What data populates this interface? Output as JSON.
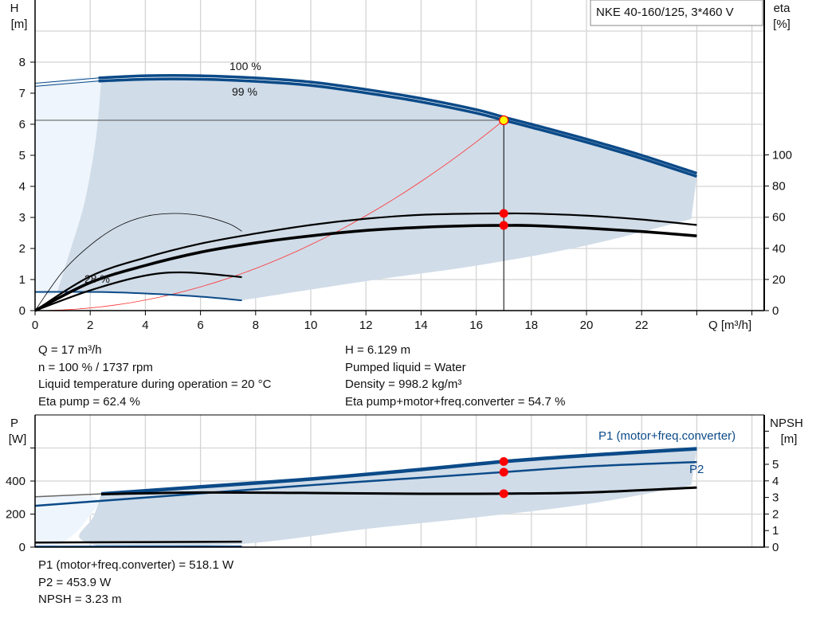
{
  "chart_data": [
    {
      "type": "line",
      "title": "NKE 40-160/125, 3*460 V",
      "xlabel": "Q [m³/h]",
      "ylabel": "H\n[m]",
      "y2label": "eta\n[%]",
      "xlim": [
        0,
        26
      ],
      "ylim": [
        0,
        10
      ],
      "y2lim": [
        0,
        200
      ],
      "grid": true,
      "x_ticks": [
        0,
        2,
        4,
        6,
        8,
        10,
        12,
        14,
        16,
        18,
        20,
        22
      ],
      "y_ticks": [
        0,
        1,
        2,
        3,
        4,
        5,
        6,
        7,
        8
      ],
      "y2_ticks": [
        0,
        20,
        40,
        60,
        80,
        100
      ],
      "annotations": [
        "100 %",
        "99 %",
        "28 %"
      ],
      "series": [
        {
          "name": "100 %",
          "kind": "H",
          "color": "#0b4a88",
          "points": [
            [
              2.3,
              7.49
            ],
            [
              4,
              7.56
            ],
            [
              6,
              7.56
            ],
            [
              8,
              7.49
            ],
            [
              10,
              7.36
            ],
            [
              12,
              7.12
            ],
            [
              14,
              6.83
            ],
            [
              16,
              6.47
            ],
            [
              17,
              6.23
            ],
            [
              18,
              6.0
            ],
            [
              20,
              5.52
            ],
            [
              22,
              5.0
            ],
            [
              24,
              4.42
            ]
          ]
        },
        {
          "name": "99 %",
          "kind": "H",
          "color": "#0b4a88",
          "points": [
            [
              2.3,
              7.39
            ],
            [
              4,
              7.45
            ],
            [
              6,
              7.45
            ],
            [
              8,
              7.38
            ],
            [
              10,
              7.25
            ],
            [
              12,
              7.01
            ],
            [
              14,
              6.72
            ],
            [
              16,
              6.36
            ],
            [
              17,
              6.13
            ],
            [
              18,
              5.9
            ],
            [
              20,
              5.42
            ],
            [
              22,
              4.9
            ],
            [
              24,
              4.32
            ]
          ]
        },
        {
          "kind": "H",
          "color": "#0b4a88",
          "points": [
            [
              0,
              0.6
            ],
            [
              2.3,
              0.6
            ],
            [
              4,
              0.55
            ],
            [
              6,
              0.45
            ],
            [
              7.5,
              0.33
            ]
          ]
        },
        {
          "kind": "eta",
          "color": "#000000",
          "points": [
            [
              0,
              0
            ],
            [
              2,
              22
            ],
            [
              4,
              34
            ],
            [
              6,
              43
            ],
            [
              8,
              49.5
            ],
            [
              10,
              55
            ],
            [
              12,
              59
            ],
            [
              14,
              61.5
            ],
            [
              16,
              62.3
            ],
            [
              17,
              62.4
            ],
            [
              18,
              62.3
            ],
            [
              20,
              61
            ],
            [
              22,
              58.5
            ],
            [
              24,
              55
            ]
          ]
        },
        {
          "kind": "eta",
          "color": "#000000",
          "points": [
            [
              0,
              0
            ],
            [
              2,
              18
            ],
            [
              4,
              29
            ],
            [
              6,
              37.5
            ],
            [
              8,
              43.5
            ],
            [
              10,
              48
            ],
            [
              12,
              51.5
            ],
            [
              14,
              53.5
            ],
            [
              16,
              54.6
            ],
            [
              17,
              54.7
            ],
            [
              18,
              54.6
            ],
            [
              20,
              53
            ],
            [
              22,
              50.8
            ],
            [
              24,
              48
            ]
          ]
        },
        {
          "kind": "eta",
          "color": "#000000",
          "points": [
            [
              0,
              0
            ],
            [
              1,
              25
            ],
            [
              2,
              42
            ],
            [
              3,
              54
            ],
            [
              4,
              60.5
            ],
            [
              5,
              62.4
            ],
            [
              6,
              61
            ],
            [
              7,
              56
            ],
            [
              7.5,
              51
            ]
          ]
        },
        {
          "kind": "eta",
          "color": "#000000",
          "points": [
            [
              0,
              0
            ],
            [
              2,
              13
            ],
            [
              4,
              22.5
            ],
            [
              5.5,
              24.5
            ],
            [
              7.5,
              21.5
            ]
          ]
        },
        {
          "kind": "system",
          "color": "#ff0000",
          "points": "H = 6.129·(Q/17)²"
        }
      ],
      "operating_point": {
        "Q": 17,
        "H": 6.129,
        "eta_pump": 62.4,
        "eta_total": 54.7
      }
    },
    {
      "type": "line",
      "ylabel": "P\n[W]",
      "y2label": "NPSH\n[m]",
      "xlim": [
        0,
        26
      ],
      "ylim": [
        0,
        800
      ],
      "y2lim": [
        0,
        8
      ],
      "grid": true,
      "y_ticks": [
        0,
        200,
        400
      ],
      "y2_ticks": [
        0,
        1,
        2,
        3,
        4,
        5
      ],
      "series": [
        {
          "name": "P1 (motor+freq.converter)",
          "kind": "P",
          "color": "#0b4a88",
          "points": [
            [
              2.4,
              322
            ],
            [
              6,
              365
            ],
            [
              10,
              412
            ],
            [
              14,
              470
            ],
            [
              17,
              518
            ],
            [
              20,
              555
            ],
            [
              24,
              595
            ]
          ]
        },
        {
          "name": "P2",
          "kind": "P",
          "color": "#0b4a88",
          "points": [
            [
              0,
              250
            ],
            [
              2.4,
              280
            ],
            [
              6,
              325
            ],
            [
              10,
              375
            ],
            [
              14,
              420
            ],
            [
              17,
              454
            ],
            [
              20,
              488
            ],
            [
              24,
              515
            ]
          ]
        },
        {
          "kind": "NPSH",
          "color": "#000000",
          "points": [
            [
              2.4,
              3.2
            ],
            [
              6,
              3.3
            ],
            [
              10,
              3.27
            ],
            [
              14,
              3.22
            ],
            [
              17,
              3.23
            ],
            [
              20,
              3.3
            ],
            [
              24,
              3.6
            ]
          ]
        },
        {
          "kind": "P",
          "color": "#000000",
          "points": [
            [
              0,
              28
            ],
            [
              7.5,
              33
            ]
          ]
        },
        {
          "kind": "P",
          "color": "#0b4a88",
          "points": [
            [
              0,
              5
            ],
            [
              7.5,
              6
            ]
          ]
        }
      ],
      "operating_point": {
        "Q": 17,
        "P1": 518.1,
        "P2": 453.9,
        "NPSH": 3.23
      }
    }
  ],
  "info": {
    "left": [
      "Q = 17 m³/h",
      "n = 100 % / 1737 rpm",
      "Liquid temperature during operation = 20 °C",
      "Eta pump = 62.4 %"
    ],
    "right": [
      "H = 6.129 m",
      "Pumped liquid = Water",
      "Density = 998.2 kg/m³",
      "Eta pump+motor+freq.converter = 54.7 %"
    ],
    "bottom": [
      "P1 (motor+freq.converter) = 518.1 W",
      "P2 = 453.9 W",
      "NPSH = 3.23 m"
    ]
  },
  "colors": {
    "curve": "#0b4a88",
    "shade": "#d0dce8",
    "shade_light": "#eef5fc",
    "point": "#ff0000",
    "duty_point": "#ffff00"
  }
}
